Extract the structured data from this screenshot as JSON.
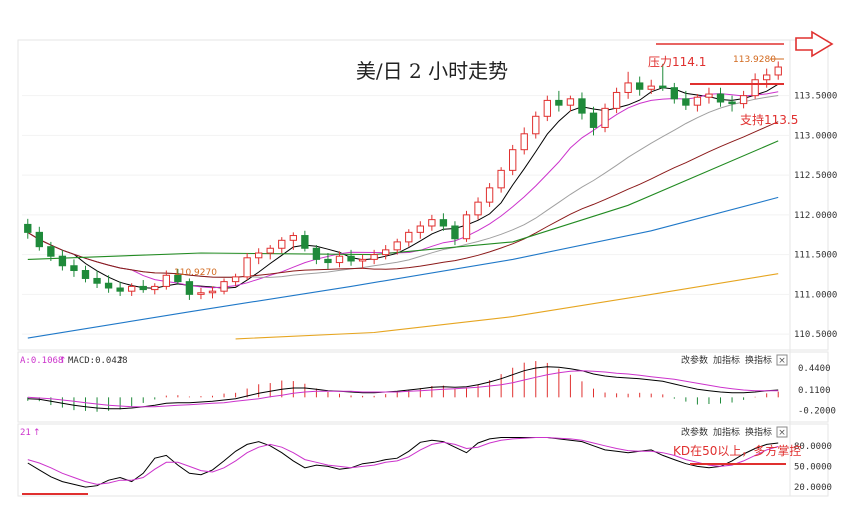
{
  "title": "美/日 2 小时走势",
  "price_axis": {
    "ticks": [
      "113.5000",
      "113.0000",
      "112.5000",
      "112.0000",
      "111.5000",
      "111.0000",
      "110.5000"
    ],
    "values": [
      113.5,
      113.0,
      112.5,
      112.0,
      111.5,
      111.0,
      110.5
    ]
  },
  "price_annotations": {
    "resistance_label": "压力114.1",
    "support_label": "支持113.5",
    "high_value": "113.9280",
    "low_value": "110.9270"
  },
  "macd_panel": {
    "header_a": "A:0.1068",
    "header_macd": "MACD:0.0428",
    "ticks": [
      "0.4400",
      "0.1100",
      "-0.2000"
    ],
    "values": [
      0.44,
      0.11,
      -0.2
    ],
    "buttons": [
      "改参数",
      "加指标",
      "换指标"
    ],
    "close": "×"
  },
  "kd_panel": {
    "header": "21",
    "ticks": [
      "80.0000",
      "50.0000",
      "20.0000"
    ],
    "values": [
      80,
      50,
      20
    ],
    "buttons": [
      "改参数",
      "加指标",
      "换指标"
    ],
    "close": "×",
    "annotation": "KD在50以上，多方掌控"
  },
  "colors": {
    "up": "#e0302f",
    "down": "#1f8a3a",
    "annotation": "#e0302f",
    "ma_fast": "#000000",
    "ma_mid": "#cc33cc",
    "ma_slow": "#8b1a1a",
    "ma_gray": "#a0a0a0",
    "ma_green": "#228b22",
    "ma_blue": "#1f78c8",
    "ma_orange": "#e6a520"
  },
  "chart_data": {
    "type": "candlestick",
    "pair": "USD/JPY",
    "interval": "2 hours",
    "ylim": [
      110.3,
      114.2
    ],
    "candles": [
      [
        111.88,
        111.95,
        111.7,
        111.78
      ],
      [
        111.78,
        111.85,
        111.55,
        111.6
      ],
      [
        111.6,
        111.66,
        111.42,
        111.48
      ],
      [
        111.48,
        111.56,
        111.3,
        111.36
      ],
      [
        111.36,
        111.44,
        111.22,
        111.3
      ],
      [
        111.3,
        111.36,
        111.15,
        111.2
      ],
      [
        111.2,
        111.3,
        111.08,
        111.14
      ],
      [
        111.14,
        111.24,
        111.02,
        111.08
      ],
      [
        111.08,
        111.16,
        110.98,
        111.04
      ],
      [
        111.04,
        111.14,
        110.98,
        111.1
      ],
      [
        111.1,
        111.18,
        111.02,
        111.06
      ],
      [
        111.06,
        111.14,
        111.0,
        111.1
      ],
      [
        111.1,
        111.3,
        111.06,
        111.24
      ],
      [
        111.24,
        111.32,
        111.12,
        111.16
      ],
      [
        111.16,
        111.2,
        110.93,
        111.0
      ],
      [
        111.0,
        111.08,
        110.94,
        111.02
      ],
      [
        111.02,
        111.1,
        110.95,
        111.04
      ],
      [
        111.04,
        111.2,
        111.0,
        111.16
      ],
      [
        111.16,
        111.26,
        111.1,
        111.22
      ],
      [
        111.22,
        111.52,
        111.18,
        111.46
      ],
      [
        111.46,
        111.58,
        111.38,
        111.52
      ],
      [
        111.52,
        111.62,
        111.44,
        111.58
      ],
      [
        111.58,
        111.72,
        111.52,
        111.68
      ],
      [
        111.68,
        111.78,
        111.56,
        111.74
      ],
      [
        111.74,
        111.8,
        111.54,
        111.58
      ],
      [
        111.58,
        111.62,
        111.38,
        111.44
      ],
      [
        111.44,
        111.52,
        111.32,
        111.4
      ],
      [
        111.4,
        111.54,
        111.34,
        111.48
      ],
      [
        111.48,
        111.56,
        111.36,
        111.42
      ],
      [
        111.42,
        111.5,
        111.32,
        111.44
      ],
      [
        111.44,
        111.56,
        111.38,
        111.5
      ],
      [
        111.5,
        111.62,
        111.44,
        111.56
      ],
      [
        111.56,
        111.7,
        111.5,
        111.66
      ],
      [
        111.66,
        111.82,
        111.6,
        111.78
      ],
      [
        111.78,
        111.92,
        111.7,
        111.86
      ],
      [
        111.86,
        112.0,
        111.8,
        111.94
      ],
      [
        111.94,
        112.02,
        111.8,
        111.86
      ],
      [
        111.86,
        111.92,
        111.62,
        111.7
      ],
      [
        111.7,
        112.05,
        111.66,
        112.0
      ],
      [
        112.0,
        112.22,
        111.94,
        112.16
      ],
      [
        112.16,
        112.4,
        112.1,
        112.34
      ],
      [
        112.34,
        112.6,
        112.28,
        112.56
      ],
      [
        112.56,
        112.88,
        112.5,
        112.82
      ],
      [
        112.82,
        113.1,
        112.76,
        113.02
      ],
      [
        113.02,
        113.3,
        112.96,
        113.24
      ],
      [
        113.24,
        113.5,
        113.18,
        113.44
      ],
      [
        113.44,
        113.56,
        113.3,
        113.38
      ],
      [
        113.38,
        113.5,
        113.3,
        113.46
      ],
      [
        113.46,
        113.54,
        113.2,
        113.28
      ],
      [
        113.28,
        113.36,
        113.0,
        113.1
      ],
      [
        113.1,
        113.4,
        113.04,
        113.34
      ],
      [
        113.34,
        113.6,
        113.28,
        113.54
      ],
      [
        113.54,
        113.8,
        113.46,
        113.66
      ],
      [
        113.66,
        113.74,
        113.5,
        113.58
      ],
      [
        113.58,
        113.7,
        113.52,
        113.62
      ],
      [
        113.62,
        113.9,
        113.56,
        113.6
      ],
      [
        113.6,
        113.66,
        113.4,
        113.46
      ],
      [
        113.46,
        113.56,
        113.32,
        113.38
      ],
      [
        113.38,
        113.52,
        113.3,
        113.48
      ],
      [
        113.48,
        113.6,
        113.4,
        113.52
      ],
      [
        113.52,
        113.6,
        113.36,
        113.42
      ],
      [
        113.42,
        113.5,
        113.3,
        113.4
      ],
      [
        113.4,
        113.56,
        113.34,
        113.5
      ],
      [
        113.5,
        113.78,
        113.46,
        113.7
      ],
      [
        113.7,
        113.84,
        113.6,
        113.76
      ],
      [
        113.76,
        113.93,
        113.7,
        113.86
      ]
    ],
    "resistance": 114.1,
    "support": 113.5,
    "high": 113.928,
    "low": 110.927,
    "moving_averages": [
      {
        "color_key": "ma_green",
        "points": [
          [
            0,
            111.44
          ],
          [
            15,
            111.52
          ],
          [
            30,
            111.5
          ],
          [
            42,
            111.66
          ],
          [
            52,
            112.12
          ],
          [
            65,
            112.93
          ]
        ]
      },
      {
        "color_key": "ma_blue",
        "points": [
          [
            0,
            110.45
          ],
          [
            14,
            110.78
          ],
          [
            28,
            111.1
          ],
          [
            42,
            111.44
          ],
          [
            54,
            111.8
          ],
          [
            65,
            112.22
          ]
        ]
      },
      {
        "color_key": "ma_orange",
        "points": [
          [
            18,
            110.44
          ],
          [
            30,
            110.52
          ],
          [
            42,
            110.72
          ],
          [
            54,
            111.0
          ],
          [
            65,
            111.26
          ]
        ]
      }
    ],
    "macd": {
      "ylim": [
        -0.34,
        0.56
      ],
      "diff": [
        -0.02,
        -0.03,
        -0.06,
        -0.09,
        -0.12,
        -0.14,
        -0.16,
        -0.17,
        -0.17,
        -0.16,
        -0.14,
        -0.12,
        -0.09,
        -0.08,
        -0.08,
        -0.07,
        -0.06,
        -0.04,
        -0.02,
        0.02,
        0.06,
        0.09,
        0.12,
        0.14,
        0.14,
        0.12,
        0.1,
        0.09,
        0.08,
        0.07,
        0.07,
        0.08,
        0.09,
        0.11,
        0.13,
        0.15,
        0.16,
        0.15,
        0.16,
        0.19,
        0.23,
        0.28,
        0.34,
        0.4,
        0.44,
        0.46,
        0.45,
        0.43,
        0.4,
        0.35,
        0.32,
        0.3,
        0.29,
        0.28,
        0.26,
        0.24,
        0.2,
        0.16,
        0.12,
        0.1,
        0.08,
        0.07,
        0.07,
        0.08,
        0.1,
        0.11
      ],
      "dea": [
        0.0,
        -0.01,
        -0.02,
        -0.04,
        -0.06,
        -0.08,
        -0.1,
        -0.12,
        -0.13,
        -0.14,
        -0.14,
        -0.14,
        -0.13,
        -0.12,
        -0.11,
        -0.1,
        -0.09,
        -0.08,
        -0.06,
        -0.04,
        -0.02,
        0.01,
        0.03,
        0.06,
        0.08,
        0.09,
        0.09,
        0.09,
        0.09,
        0.08,
        0.08,
        0.08,
        0.08,
        0.09,
        0.1,
        0.11,
        0.12,
        0.13,
        0.14,
        0.15,
        0.17,
        0.19,
        0.22,
        0.26,
        0.3,
        0.34,
        0.37,
        0.39,
        0.4,
        0.39,
        0.38,
        0.36,
        0.35,
        0.33,
        0.31,
        0.29,
        0.27,
        0.24,
        0.21,
        0.18,
        0.15,
        0.13,
        0.11,
        0.1,
        0.1,
        0.1
      ]
    },
    "kd": {
      "ylim": [
        10,
        100
      ],
      "k": [
        55,
        45,
        35,
        28,
        24,
        20,
        22,
        30,
        34,
        28,
        40,
        62,
        66,
        52,
        40,
        38,
        45,
        58,
        72,
        82,
        86,
        80,
        70,
        58,
        48,
        52,
        50,
        46,
        48,
        54,
        56,
        60,
        62,
        72,
        85,
        88,
        86,
        78,
        70,
        84,
        90,
        92,
        92,
        92,
        92,
        92,
        90,
        88,
        86,
        80,
        74,
        72,
        70,
        72,
        74,
        66,
        60,
        54,
        50,
        48,
        50,
        58,
        68,
        76,
        82,
        84
      ],
      "d": [
        60,
        55,
        48,
        40,
        34,
        28,
        24,
        26,
        30,
        30,
        34,
        46,
        56,
        56,
        50,
        44,
        42,
        48,
        58,
        70,
        78,
        82,
        78,
        70,
        60,
        56,
        52,
        50,
        48,
        50,
        52,
        56,
        58,
        64,
        74,
        82,
        85,
        82,
        76,
        78,
        84,
        88,
        90,
        91,
        92,
        92,
        91,
        90,
        88,
        84,
        80,
        76,
        73,
        72,
        72,
        70,
        66,
        60,
        56,
        52,
        50,
        52,
        58,
        66,
        74,
        79
      ]
    }
  }
}
